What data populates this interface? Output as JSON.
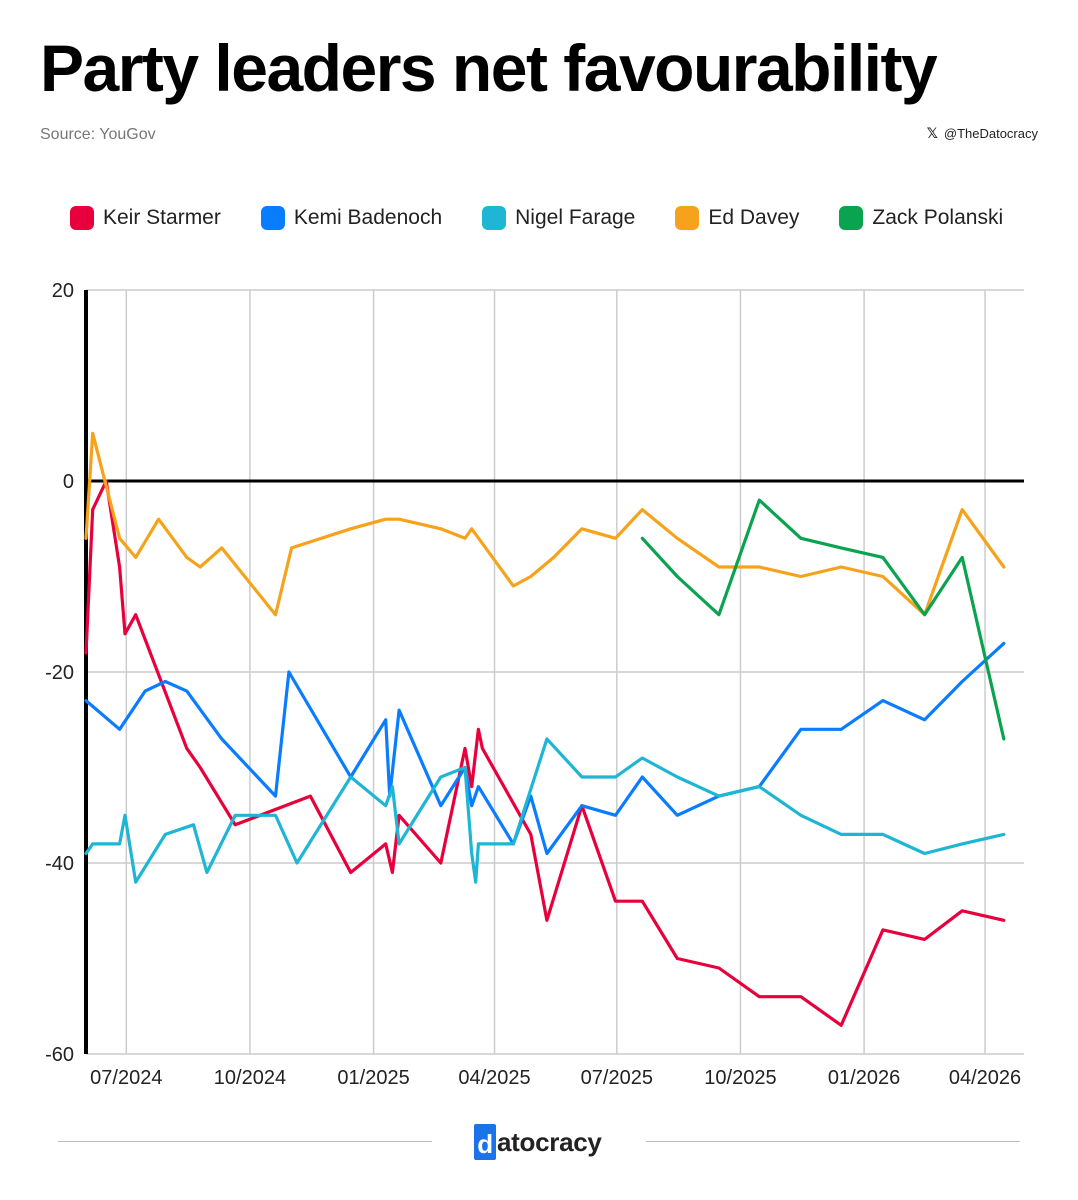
{
  "header": {
    "title": "Party leaders net favourability",
    "source": "Source: YouGov",
    "handle": "@TheDatocracy",
    "handle_icon": "x-logo-icon"
  },
  "footer": {
    "brand_initial": "d",
    "brand_rest": "atocracy"
  },
  "chart_data": {
    "type": "line",
    "title": "Party leaders net favourability",
    "xlabel": "",
    "ylabel": "",
    "ylim": [
      -60,
      20
    ],
    "yticks": [
      20,
      0,
      -20,
      -40,
      -60
    ],
    "xticks": [
      "07/2024",
      "10/2024",
      "01/2025",
      "04/2025",
      "07/2025",
      "10/2025",
      "01/2026",
      "04/2026"
    ],
    "xlim": [
      "2024-06-01",
      "2026-04-30"
    ],
    "grid": true,
    "legend": "top",
    "series": [
      {
        "name": "Keir Starmer",
        "color": "#e8003d",
        "points": [
          [
            "2024-06-01",
            -18
          ],
          [
            "2024-06-06",
            -3
          ],
          [
            "2024-06-16",
            0
          ],
          [
            "2024-06-26",
            -9
          ],
          [
            "2024-06-30",
            -16
          ],
          [
            "2024-07-08",
            -14
          ],
          [
            "2024-08-15",
            -28
          ],
          [
            "2024-08-25",
            -30
          ],
          [
            "2024-09-20",
            -36
          ],
          [
            "2024-11-15",
            -33
          ],
          [
            "2024-12-15",
            -41
          ],
          [
            "2025-01-10",
            -38
          ],
          [
            "2025-01-15",
            -41
          ],
          [
            "2025-01-20",
            -35
          ],
          [
            "2025-02-20",
            -40
          ],
          [
            "2025-03-10",
            -28
          ],
          [
            "2025-03-15",
            -32
          ],
          [
            "2025-03-20",
            -26
          ],
          [
            "2025-03-23",
            -28
          ],
          [
            "2025-04-28",
            -37
          ],
          [
            "2025-05-10",
            -46
          ],
          [
            "2025-06-05",
            -34
          ],
          [
            "2025-06-30",
            -44
          ],
          [
            "2025-07-20",
            -44
          ],
          [
            "2025-08-15",
            -50
          ],
          [
            "2025-09-15",
            -51
          ],
          [
            "2025-10-15",
            -54
          ],
          [
            "2025-11-15",
            -54
          ],
          [
            "2025-12-15",
            -57
          ],
          [
            "2026-01-15",
            -47
          ],
          [
            "2026-02-15",
            -48
          ],
          [
            "2026-03-15",
            -45
          ],
          [
            "2026-04-15",
            -46
          ]
        ]
      },
      {
        "name": "Kemi Badenoch",
        "color": "#0a7cff",
        "points": [
          [
            "2024-06-01",
            -23
          ],
          [
            "2024-06-26",
            -26
          ],
          [
            "2024-07-15",
            -22
          ],
          [
            "2024-07-30",
            -21
          ],
          [
            "2024-08-15",
            -22
          ],
          [
            "2024-09-10",
            -27
          ],
          [
            "2024-10-20",
            -33
          ],
          [
            "2024-10-30",
            -20
          ],
          [
            "2024-12-15",
            -31
          ],
          [
            "2025-01-10",
            -25
          ],
          [
            "2025-01-13",
            -33
          ],
          [
            "2025-01-20",
            -24
          ],
          [
            "2025-02-20",
            -34
          ],
          [
            "2025-03-10",
            -30
          ],
          [
            "2025-03-15",
            -34
          ],
          [
            "2025-03-20",
            -32
          ],
          [
            "2025-04-15",
            -38
          ],
          [
            "2025-04-28",
            -33
          ],
          [
            "2025-05-10",
            -39
          ],
          [
            "2025-06-05",
            -34
          ],
          [
            "2025-06-30",
            -35
          ],
          [
            "2025-07-20",
            -31
          ],
          [
            "2025-08-15",
            -35
          ],
          [
            "2025-09-15",
            -33
          ],
          [
            "2025-10-15",
            -32
          ],
          [
            "2025-11-15",
            -26
          ],
          [
            "2025-12-15",
            -26
          ],
          [
            "2026-01-15",
            -23
          ],
          [
            "2026-02-15",
            -25
          ],
          [
            "2026-03-15",
            -21
          ],
          [
            "2026-04-15",
            -17
          ]
        ]
      },
      {
        "name": "Nigel Farage",
        "color": "#1fb5d4",
        "points": [
          [
            "2024-06-01",
            -39
          ],
          [
            "2024-06-06",
            -38
          ],
          [
            "2024-06-26",
            -38
          ],
          [
            "2024-06-30",
            -35
          ],
          [
            "2024-07-08",
            -42
          ],
          [
            "2024-07-30",
            -37
          ],
          [
            "2024-08-20",
            -36
          ],
          [
            "2024-08-30",
            -41
          ],
          [
            "2024-09-20",
            -35
          ],
          [
            "2024-10-20",
            -35
          ],
          [
            "2024-11-05",
            -40
          ],
          [
            "2024-12-15",
            -31
          ],
          [
            "2025-01-10",
            -34
          ],
          [
            "2025-01-15",
            -32
          ],
          [
            "2025-01-20",
            -38
          ],
          [
            "2025-02-20",
            -31
          ],
          [
            "2025-03-10",
            -30
          ],
          [
            "2025-03-15",
            -39
          ],
          [
            "2025-03-18",
            -42
          ],
          [
            "2025-03-20",
            -38
          ],
          [
            "2025-04-15",
            -38
          ],
          [
            "2025-05-10",
            -27
          ],
          [
            "2025-06-05",
            -31
          ],
          [
            "2025-06-30",
            -31
          ],
          [
            "2025-07-20",
            -29
          ],
          [
            "2025-08-15",
            -31
          ],
          [
            "2025-09-15",
            -33
          ],
          [
            "2025-10-15",
            -32
          ],
          [
            "2025-11-15",
            -35
          ],
          [
            "2025-12-15",
            -37
          ],
          [
            "2026-01-15",
            -37
          ],
          [
            "2026-02-15",
            -39
          ],
          [
            "2026-03-15",
            -38
          ],
          [
            "2026-04-15",
            -37
          ]
        ]
      },
      {
        "name": "Ed Davey",
        "color": "#f7a21b",
        "points": [
          [
            "2024-06-01",
            -6
          ],
          [
            "2024-06-06",
            5
          ],
          [
            "2024-06-26",
            -6
          ],
          [
            "2024-07-08",
            -8
          ],
          [
            "2024-07-25",
            -4
          ],
          [
            "2024-08-15",
            -8
          ],
          [
            "2024-08-25",
            -9
          ],
          [
            "2024-09-10",
            -7
          ],
          [
            "2024-10-20",
            -14
          ],
          [
            "2024-11-01",
            -7
          ],
          [
            "2024-12-15",
            -5
          ],
          [
            "2025-01-10",
            -4
          ],
          [
            "2025-01-20",
            -4
          ],
          [
            "2025-02-20",
            -5
          ],
          [
            "2025-03-10",
            -6
          ],
          [
            "2025-03-15",
            -5
          ],
          [
            "2025-04-15",
            -11
          ],
          [
            "2025-04-28",
            -10
          ],
          [
            "2025-05-15",
            -8
          ],
          [
            "2025-06-05",
            -5
          ],
          [
            "2025-06-30",
            -6
          ],
          [
            "2025-07-20",
            -3
          ],
          [
            "2025-08-15",
            -6
          ],
          [
            "2025-09-15",
            -9
          ],
          [
            "2025-10-15",
            -9
          ],
          [
            "2025-11-15",
            -10
          ],
          [
            "2025-12-15",
            -9
          ],
          [
            "2026-01-15",
            -10
          ],
          [
            "2026-02-15",
            -14
          ],
          [
            "2026-03-15",
            -3
          ],
          [
            "2026-04-15",
            -9
          ]
        ]
      },
      {
        "name": "Zack Polanski",
        "color": "#0aa34f",
        "points": [
          [
            "2025-07-20",
            -6
          ],
          [
            "2025-08-15",
            -10
          ],
          [
            "2025-09-15",
            -14
          ],
          [
            "2025-10-15",
            -2
          ],
          [
            "2025-11-15",
            -6
          ],
          [
            "2025-12-15",
            -7
          ],
          [
            "2026-01-15",
            -8
          ],
          [
            "2026-02-15",
            -14
          ],
          [
            "2026-03-15",
            -8
          ],
          [
            "2026-04-15",
            -27
          ]
        ]
      }
    ]
  }
}
